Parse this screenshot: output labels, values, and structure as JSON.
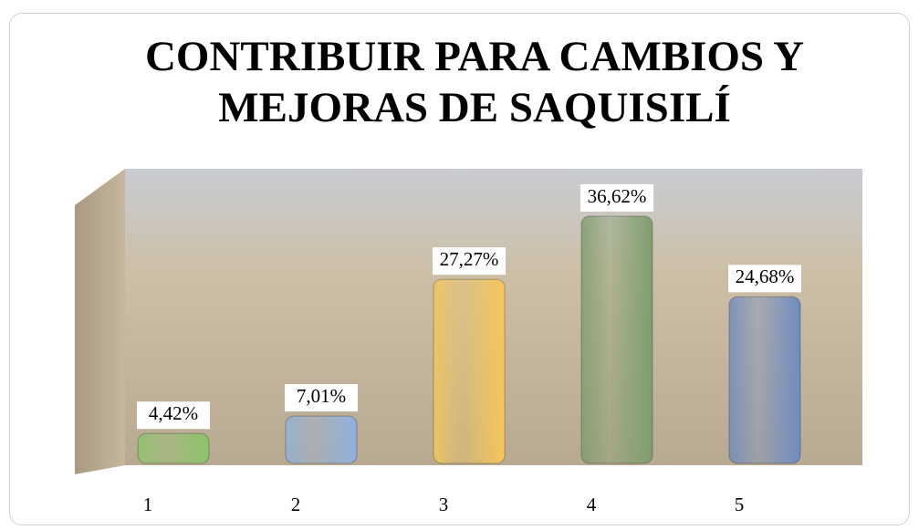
{
  "chart_data": {
    "type": "bar",
    "title": "CONTRIBUIR PARA CAMBIOS Y MEJORAS DE SAQUISILÍ",
    "categories": [
      "1",
      "2",
      "3",
      "4",
      "5"
    ],
    "values": [
      4.42,
      7.01,
      27.27,
      36.62,
      24.68
    ],
    "value_labels": [
      "4,42%",
      "7,01%",
      "27,27%",
      "36,62%",
      "24,68%"
    ],
    "colors": [
      "#8cc46a",
      "#8fb1de",
      "#f5c65a",
      "#7f9d6e",
      "#6f8cc0"
    ]
  }
}
